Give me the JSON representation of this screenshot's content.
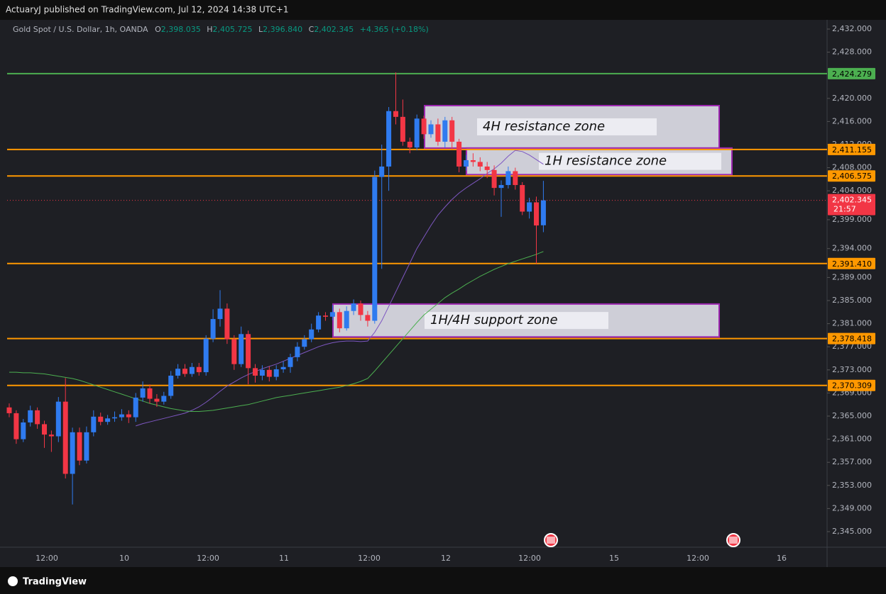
{
  "header": {
    "publisher": "ActuaryJ published on TradingView.com, Jul 12, 2024 14:38 UTC+1"
  },
  "legend": {
    "symbol": "Gold Spot / U.S. Dollar, 1h, OANDA",
    "o_key": "O",
    "o": "2,398.035",
    "h_key": "H",
    "h": "2,405.725",
    "l_key": "L",
    "l": "2,396.840",
    "c_key": "C",
    "c": "2,402.345",
    "change": "+4.365 (+0.18%)"
  },
  "footer": {
    "brand": "TradingView"
  },
  "chart_data": {
    "type": "candlestick",
    "up_color": "#2f7bf0",
    "down_color": "#f23645",
    "ylim": [
      2342.3,
      2433.35
    ],
    "yticks": [
      {
        "value": 2432,
        "label": "2,432.000"
      },
      {
        "value": 2428,
        "label": "2,428.000"
      },
      {
        "value": 2420,
        "label": "2,420.000"
      },
      {
        "value": 2416,
        "label": "2,416.000"
      },
      {
        "value": 2412,
        "label": "2,412.000"
      },
      {
        "value": 2408,
        "label": "2,408.000"
      },
      {
        "value": 2404,
        "label": "2,404.000"
      },
      {
        "value": 2399,
        "label": "2,399.000"
      },
      {
        "value": 2394,
        "label": "2,394.000"
      },
      {
        "value": 2389,
        "label": "2,389.000"
      },
      {
        "value": 2385,
        "label": "2,385.000"
      },
      {
        "value": 2381,
        "label": "2,381.000"
      },
      {
        "value": 2377,
        "label": "2,377.000"
      },
      {
        "value": 2373,
        "label": "2,373.000"
      },
      {
        "value": 2369,
        "label": "2,369.000"
      },
      {
        "value": 2365,
        "label": "2,365.000"
      },
      {
        "value": 2361,
        "label": "2,361.000"
      },
      {
        "value": 2357,
        "label": "2,357.000"
      },
      {
        "value": 2353,
        "label": "2,353.000"
      },
      {
        "value": 2349,
        "label": "2,349.000"
      },
      {
        "value": 2345,
        "label": "2,345.000"
      }
    ],
    "time_labels": [
      "12:00",
      "10",
      "12:00",
      "11",
      "12:00",
      "12",
      "12:00",
      "15",
      "12:00",
      "16"
    ],
    "open": [
      2366.5,
      2365.5,
      2361,
      2363.9,
      2366,
      2363.6,
      2361.8,
      2361.5,
      2367.5,
      2355,
      2362.2,
      2357.3,
      2362.2,
      2364.9,
      2364,
      2364.6,
      2364.8,
      2365.3,
      2364.8,
      2368.2,
      2369.8,
      2368,
      2367.5,
      2368.5,
      2372,
      2373.2,
      2372.3,
      2373.5,
      2372.6,
      2378.4,
      2381.8,
      2383.6,
      2378.3,
      2374,
      2379.2,
      2373.3,
      2372,
      2373,
      2371.8,
      2373.1,
      2373.5,
      2375.2,
      2377,
      2378.3,
      2380,
      2382.4,
      2382.2,
      2383,
      2380.2,
      2383.2,
      2384.5,
      2382.5,
      2381.5,
      2406.4,
      2408.2,
      2417.8,
      2416.8,
      2412.5,
      2411.5,
      2416.5,
      2413.8,
      2415.5,
      2412.5,
      2416.2,
      2412.5,
      2408.2,
      2409.3,
      2409,
      2408.2,
      2407.6,
      2404.5,
      2405,
      2407.4,
      2405,
      2400.4,
      2402,
      2398.035
    ],
    "high": [
      2367.2,
      2366,
      2364.5,
      2366.8,
      2366.5,
      2364.2,
      2362.5,
      2368.3,
      2371.6,
      2363,
      2363,
      2363.2,
      2366,
      2365.6,
      2365.2,
      2365.8,
      2366.2,
      2366,
      2369,
      2371,
      2370.5,
      2368.8,
      2369.2,
      2372.8,
      2374,
      2374,
      2374.2,
      2374.2,
      2379,
      2383.5,
      2386.8,
      2384.5,
      2379,
      2380.5,
      2379.8,
      2374,
      2373.8,
      2373.6,
      2373.8,
      2374.5,
      2375.8,
      2377.8,
      2379,
      2381,
      2383,
      2383,
      2384.2,
      2383.6,
      2384,
      2385.2,
      2385,
      2383.2,
      2407.5,
      2412,
      2418.5,
      2424.5,
      2419.8,
      2413.2,
      2417.2,
      2417,
      2416.2,
      2416.5,
      2416.8,
      2416.8,
      2413,
      2410.2,
      2410.5,
      2409.8,
      2409,
      2408.4,
      2405.8,
      2408.2,
      2408,
      2405.5,
      2402.8,
      2403,
      2405.725
    ],
    "low": [
      2364.8,
      2360.2,
      2360.5,
      2363.2,
      2362.8,
      2359.5,
      2358.8,
      2360.5,
      2354.2,
      2349.7,
      2356.5,
      2356.8,
      2361.5,
      2363.4,
      2363.5,
      2364,
      2364.2,
      2363.8,
      2364,
      2367.5,
      2367.2,
      2366.6,
      2367,
      2368,
      2371.5,
      2371.8,
      2371.8,
      2372,
      2372,
      2377.8,
      2380.5,
      2377.5,
      2373,
      2373.5,
      2370.5,
      2370.8,
      2371.2,
      2371,
      2371.2,
      2372.5,
      2372.5,
      2374.5,
      2376.5,
      2377.8,
      2379.5,
      2381.5,
      2381.6,
      2379.5,
      2379.8,
      2382.5,
      2381.5,
      2380.5,
      2381,
      2390.5,
      2404,
      2415.5,
      2411.8,
      2410.5,
      2411,
      2413,
      2413.2,
      2411.8,
      2411.5,
      2411.2,
      2407.2,
      2407.5,
      2408.2,
      2407.4,
      2406.2,
      2403.2,
      2399.5,
      2404.4,
      2404.2,
      2399.8,
      2399.2,
      2391.4,
      2396.84
    ],
    "close": [
      2365.5,
      2361,
      2363.9,
      2366,
      2363.6,
      2361.8,
      2361.5,
      2367.5,
      2355,
      2362.2,
      2357.3,
      2362.2,
      2364.9,
      2364,
      2364.6,
      2364.8,
      2365.3,
      2364.8,
      2368.2,
      2369.8,
      2368,
      2367.5,
      2368.5,
      2372,
      2373.2,
      2372.3,
      2373.5,
      2372.6,
      2378.4,
      2381.8,
      2383.6,
      2378.3,
      2374,
      2379.2,
      2373.3,
      2372,
      2373,
      2371.8,
      2373.1,
      2373.5,
      2375.2,
      2377,
      2378.3,
      2380,
      2382.4,
      2382.2,
      2383,
      2380.2,
      2383.2,
      2384.5,
      2382.5,
      2381.5,
      2406.4,
      2408.2,
      2417.8,
      2416.8,
      2412.5,
      2411.5,
      2416.5,
      2413.8,
      2415.5,
      2412.5,
      2416.2,
      2412.5,
      2408.2,
      2409.3,
      2409,
      2408.2,
      2407.6,
      2404.5,
      2405,
      2407.4,
      2405,
      2400.4,
      2402,
      2398,
      2402.345
    ],
    "lines": [
      {
        "color": "#7e57c2",
        "values": [
          null,
          null,
          null,
          null,
          null,
          null,
          null,
          null,
          null,
          null,
          null,
          null,
          null,
          null,
          null,
          null,
          null,
          null,
          2363.3,
          2363.7,
          2364.0,
          2364.3,
          2364.6,
          2364.9,
          2365.2,
          2365.5,
          2366.0,
          2366.6,
          2367.4,
          2368.3,
          2369.3,
          2370.2,
          2370.9,
          2371.6,
          2372.2,
          2372.7,
          2373.2,
          2373.6,
          2374.0,
          2374.5,
          2375.0,
          2375.5,
          2376.0,
          2376.5,
          2377.0,
          2377.4,
          2377.7,
          2377.9,
          2378.0,
          2378.0,
          2377.9,
          2378.0,
          2379.5,
          2381.5,
          2384.0,
          2386.5,
          2389.0,
          2391.5,
          2394.0,
          2396.0,
          2398.0,
          2399.8,
          2401.2,
          2402.5,
          2403.6,
          2404.5,
          2405.3,
          2406.1,
          2407.0,
          2407.8,
          2408.8,
          2410.0,
          2411.0,
          2410.8,
          2410.2,
          2409.4,
          2408.6
        ]
      },
      {
        "color": "#4caf50",
        "values": [
          2372.6,
          2372.6,
          2372.5,
          2372.5,
          2372.4,
          2372.3,
          2372.1,
          2371.9,
          2371.7,
          2371.5,
          2371.2,
          2370.8,
          2370.4,
          2370.0,
          2369.6,
          2369.2,
          2368.8,
          2368.4,
          2368.0,
          2367.6,
          2367.2,
          2366.9,
          2366.6,
          2366.3,
          2366.1,
          2365.9,
          2365.8,
          2365.8,
          2365.9,
          2366.0,
          2366.2,
          2366.4,
          2366.6,
          2366.8,
          2367.0,
          2367.3,
          2367.6,
          2367.9,
          2368.2,
          2368.4,
          2368.6,
          2368.8,
          2369.0,
          2369.2,
          2369.4,
          2369.6,
          2369.8,
          2370.0,
          2370.3,
          2370.6,
          2371.0,
          2371.5,
          2372.8,
          2374.2,
          2375.6,
          2377.0,
          2378.4,
          2379.8,
          2381.2,
          2382.5,
          2383.5,
          2384.5,
          2385.5,
          2386.3,
          2387.0,
          2387.8,
          2388.5,
          2389.2,
          2389.8,
          2390.4,
          2390.9,
          2391.4,
          2391.8,
          2392.2,
          2392.6,
          2393.0,
          2393.5
        ]
      }
    ],
    "levels": [
      {
        "value": 2424.279,
        "label": "2,424.279",
        "color": "#4caf50"
      },
      {
        "value": 2411.155,
        "label": "2,411.155",
        "color": "#ff9800"
      },
      {
        "value": 2406.575,
        "label": "2,406.575",
        "color": "#ff9800"
      },
      {
        "value": 2391.41,
        "label": "2,391.410",
        "color": "#ff9800"
      },
      {
        "value": 2378.418,
        "label": "2,378.418",
        "color": "#ff9800"
      },
      {
        "value": 2370.309,
        "label": "2,370.309",
        "color": "#ff9800"
      }
    ],
    "last": {
      "value": 2402.345,
      "label": "2,402.345",
      "countdown": "21:57",
      "color": "#f23645"
    },
    "zones": [
      {
        "label": "4H resistance zone",
        "top": 2418.75,
        "bottom": 2411.4
      },
      {
        "label": "1H resistance zone",
        "top": 2411.4,
        "bottom": 2406.8
      },
      {
        "label": "1H/4H support zone",
        "top": 2384.4,
        "bottom": 2378.7
      }
    ]
  }
}
